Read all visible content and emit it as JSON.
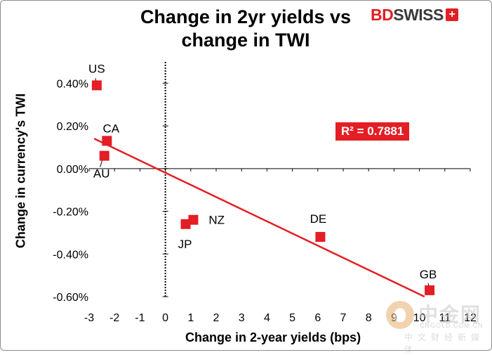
{
  "brand": {
    "bd": "BD",
    "swiss": "SWISS",
    "cross_symbol": "+"
  },
  "watermark": {
    "name": "中金网",
    "site": "CNGOLD.COM.CN",
    "sub": "中文财经新媒体"
  },
  "colors": {
    "accent": "#e31e24",
    "marker": "#e31e24",
    "trendline": "#e31e24"
  },
  "chart_data": {
    "type": "scatter",
    "title": "Change in 2yr yields vs change in TWI",
    "title_lines": [
      "Change in 2yr yields vs",
      "change in TWI"
    ],
    "xlabel": "Change in 2-year yields (bps)",
    "ylabel": "Change in currency's  TWI",
    "xlim": [
      -3,
      12
    ],
    "ylim": [
      -0.6,
      0.5
    ],
    "x_ticks": [
      -3,
      -2,
      -1,
      0,
      1,
      2,
      3,
      4,
      5,
      6,
      7,
      8,
      9,
      10,
      11,
      12
    ],
    "x_tick_labels": [
      "-3",
      "-2",
      "-1",
      "0",
      "1",
      "2",
      "3",
      "4",
      "5",
      "6",
      "7",
      "8",
      "9",
      "10",
      "11",
      "12"
    ],
    "y_ticks": [
      0.4,
      0.2,
      0.0,
      -0.2,
      -0.4,
      -0.6
    ],
    "y_tick_labels": [
      "0.40%",
      "0.20%",
      "0.00%",
      "-0.20%",
      "-0.40%",
      "-0.60%"
    ],
    "grid": false,
    "points": [
      {
        "label": "US",
        "x": -2.7,
        "y": 0.39
      },
      {
        "label": "CA",
        "x": -2.3,
        "y": 0.13
      },
      {
        "label": "AU",
        "x": -2.4,
        "y": 0.06
      },
      {
        "label": "JP",
        "x": 0.8,
        "y": -0.26
      },
      {
        "label": "NZ",
        "x": 1.1,
        "y": -0.24
      },
      {
        "label": "DE",
        "x": 6.1,
        "y": -0.32
      },
      {
        "label": "GB",
        "x": 10.4,
        "y": -0.57
      }
    ],
    "trendline": {
      "x": [
        -2.8,
        10.2
      ],
      "y": [
        0.14,
        -0.6
      ]
    },
    "annotation": "R² = 0.7881"
  }
}
